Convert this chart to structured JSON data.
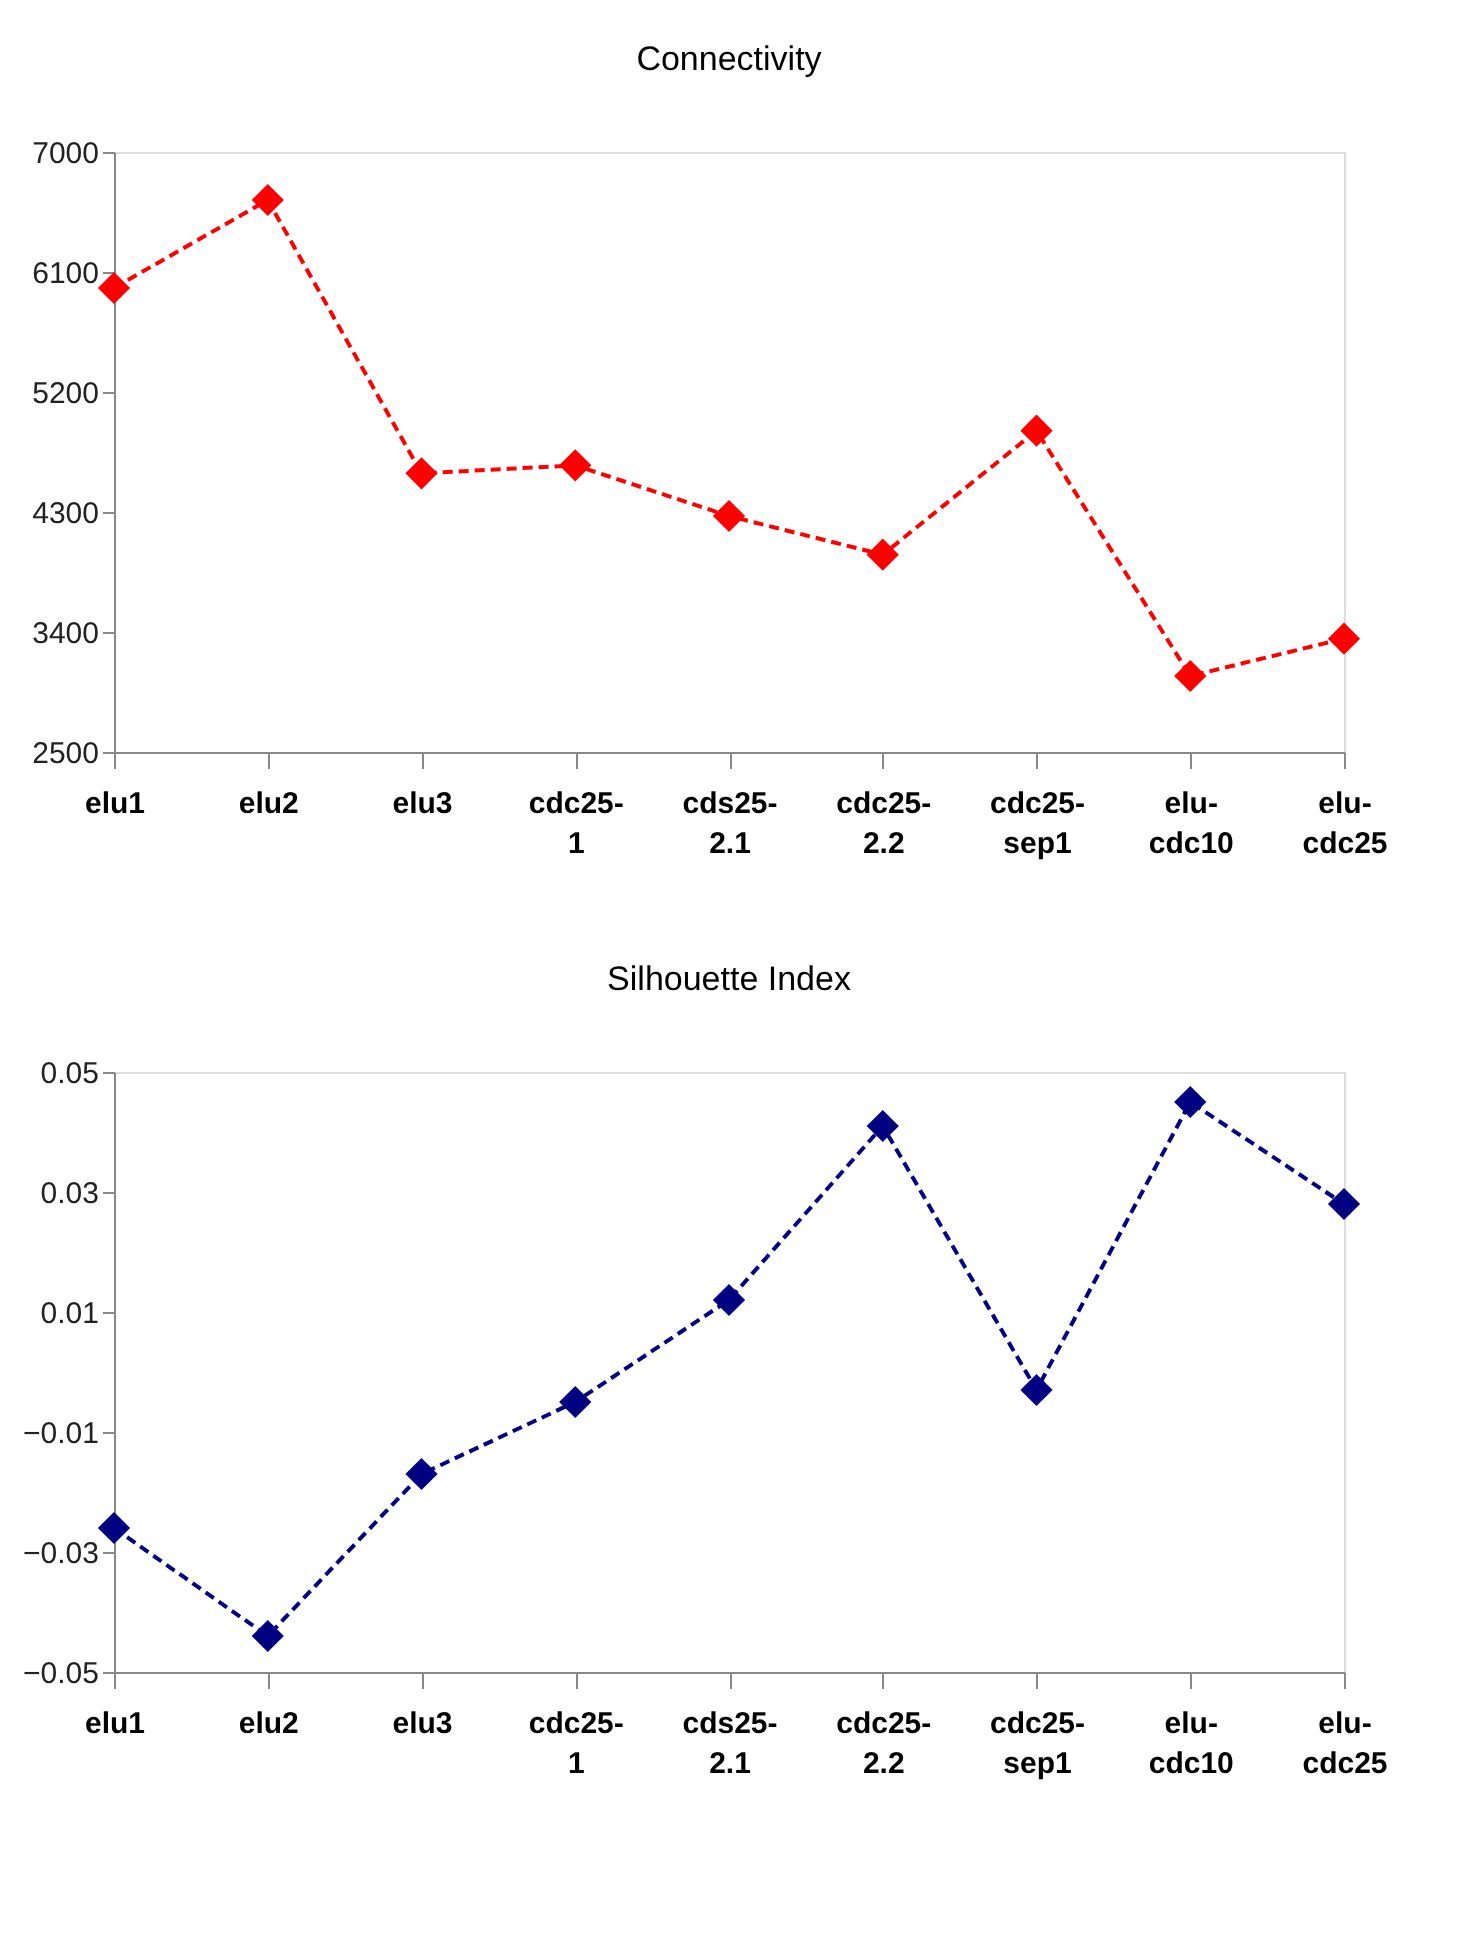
{
  "chart_data": [
    {
      "type": "line",
      "title": "Connectivity",
      "categories": [
        "elu1",
        "elu2",
        "elu3",
        "cdc25-1",
        "cds25-2.1",
        "cdc25-2.2",
        "cdc25-sep1",
        "elu-cdc10",
        "elu-cdc25"
      ],
      "series": [
        {
          "color": "#ff0000",
          "values": [
            5980,
            6640,
            4590,
            4650,
            4270,
            3980,
            4910,
            3070,
            3350
          ]
        }
      ],
      "ylim": [
        2500,
        7000
      ],
      "yticks": [
        2500,
        3400,
        4300,
        5200,
        6100,
        7000
      ],
      "marker": "diamond",
      "line_style": "dashed",
      "grid": false
    },
    {
      "type": "line",
      "title": "Silhouette Index",
      "categories": [
        "elu1",
        "elu2",
        "elu3",
        "cdc25-1",
        "cds25-2.1",
        "cdc25-2.2",
        "cdc25-sep1",
        "elu-cdc10",
        "elu-cdc25"
      ],
      "series": [
        {
          "color": "#000080",
          "values": [
            -0.026,
            -0.044,
            -0.017,
            -0.005,
            0.012,
            0.041,
            -0.003,
            0.045,
            0.028
          ]
        }
      ],
      "ylim": [
        -0.05,
        0.05
      ],
      "yticks": [
        -0.05,
        -0.03,
        -0.01,
        0.01,
        0.03,
        0.05
      ],
      "marker": "diamond",
      "line_style": "dashed",
      "grid": false
    }
  ]
}
